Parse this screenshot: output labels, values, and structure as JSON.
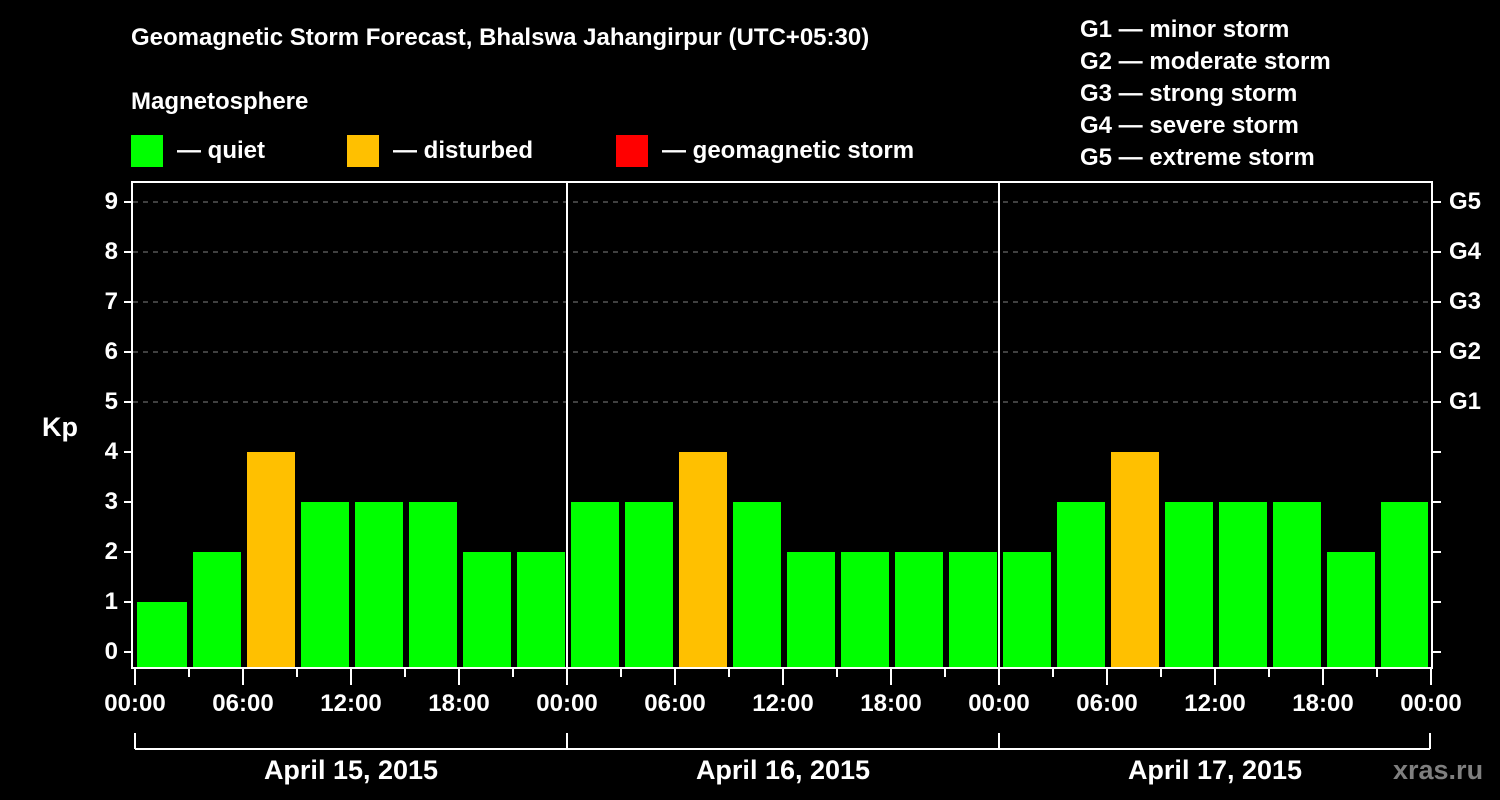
{
  "header": {
    "title": "Geomagnetic Storm Forecast, Bhalswa Jahangirpur (UTC+05:30)",
    "subtitle": "Magnetosphere"
  },
  "legend": {
    "items": [
      {
        "label": "— quiet",
        "color": "#00ff00"
      },
      {
        "label": "— disturbed",
        "color": "#ffc000"
      },
      {
        "label": "— geomagnetic storm",
        "color": "#ff0000"
      }
    ]
  },
  "g_scale_legend": [
    "G1 — minor storm",
    "G2 — moderate storm",
    "G3 — strong storm",
    "G4 — severe storm",
    "G5 — extreme storm"
  ],
  "axes": {
    "ylabel": "Kp",
    "y_ticks": [
      "0",
      "1",
      "2",
      "3",
      "4",
      "5",
      "6",
      "7",
      "8",
      "9"
    ],
    "g_ticks": [
      {
        "label": "G1",
        "kp": 5
      },
      {
        "label": "G2",
        "kp": 6
      },
      {
        "label": "G3",
        "kp": 7
      },
      {
        "label": "G4",
        "kp": 8
      },
      {
        "label": "G5",
        "kp": 9
      }
    ],
    "x_ticks": [
      "00:00",
      "06:00",
      "12:00",
      "18:00",
      "00:00",
      "06:00",
      "12:00",
      "18:00",
      "00:00",
      "06:00",
      "12:00",
      "18:00",
      "00:00"
    ],
    "dates": [
      "April 15, 2015",
      "April 16, 2015",
      "April 17, 2015"
    ]
  },
  "watermark": "xras.ru",
  "chart_data": {
    "type": "bar",
    "title": "Geomagnetic Storm Forecast, Bhalswa Jahangirpur (UTC+05:30)",
    "xlabel": "",
    "ylabel": "Kp",
    "ylim": [
      0,
      9
    ],
    "grid": "dashed horizontal at Kp 5-9",
    "legend_position": "top",
    "categories": [
      "Apr 15 00:00",
      "Apr 15 03:00",
      "Apr 15 06:00",
      "Apr 15 09:00",
      "Apr 15 12:00",
      "Apr 15 15:00",
      "Apr 15 18:00",
      "Apr 15 21:00",
      "Apr 16 00:00",
      "Apr 16 03:00",
      "Apr 16 06:00",
      "Apr 16 09:00",
      "Apr 16 12:00",
      "Apr 16 15:00",
      "Apr 16 18:00",
      "Apr 16 21:00",
      "Apr 17 00:00",
      "Apr 17 03:00",
      "Apr 17 06:00",
      "Apr 17 09:00",
      "Apr 17 12:00",
      "Apr 17 15:00",
      "Apr 17 18:00",
      "Apr 17 21:00"
    ],
    "values": [
      1,
      2,
      4,
      3,
      3,
      3,
      2,
      2,
      3,
      3,
      4,
      3,
      2,
      2,
      2,
      2,
      2,
      3,
      4,
      3,
      3,
      3,
      2,
      3
    ],
    "status": [
      "quiet",
      "quiet",
      "disturbed",
      "quiet",
      "quiet",
      "quiet",
      "quiet",
      "quiet",
      "quiet",
      "quiet",
      "disturbed",
      "quiet",
      "quiet",
      "quiet",
      "quiet",
      "quiet",
      "quiet",
      "quiet",
      "disturbed",
      "quiet",
      "quiet",
      "quiet",
      "quiet",
      "quiet"
    ],
    "colors": {
      "quiet": "#00ff00",
      "disturbed": "#ffc000",
      "storm": "#ff0000"
    }
  }
}
